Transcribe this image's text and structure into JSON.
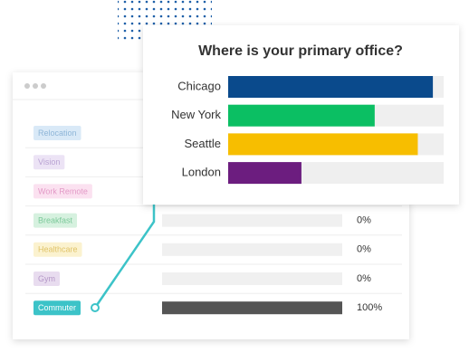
{
  "background_panel": {
    "rows": [
      {
        "label": "Relocation",
        "color": "#d9e9f7",
        "text_color": "#8fb6d8"
      },
      {
        "label": "Vision",
        "color": "#ece3f5",
        "text_color": "#b9a3d3"
      },
      {
        "label": "Work Remote",
        "color": "#fbe1f0",
        "text_color": "#e39ac7"
      },
      {
        "label": "Breakfast",
        "color": "#d6f1df",
        "text_color": "#7cc99a",
        "value": 0,
        "value_label": "0%"
      },
      {
        "label": "Healthcare",
        "color": "#fbf2cf",
        "text_color": "#e0c46a",
        "value": 0,
        "value_label": "0%"
      },
      {
        "label": "Gym",
        "color": "#e8dcef",
        "text_color": "#b497c7",
        "value": 0,
        "value_label": "0%"
      },
      {
        "label": "Commuter",
        "color": "#3cc3c8",
        "text_color": "#ffffff",
        "value": 100,
        "value_label": "100%"
      }
    ],
    "xlim": [
      0,
      100
    ],
    "bar_color": "#555555"
  },
  "chart_data": {
    "type": "hbar",
    "title": "Where is your primary office?",
    "categories": [
      "Chicago",
      "New York",
      "Seattle",
      "London"
    ],
    "values": [
      95,
      68,
      88,
      34
    ],
    "colors": [
      "#0a4a8c",
      "#0bbf63",
      "#f7be00",
      "#6c1d7f"
    ],
    "xlim": [
      0,
      100
    ]
  }
}
